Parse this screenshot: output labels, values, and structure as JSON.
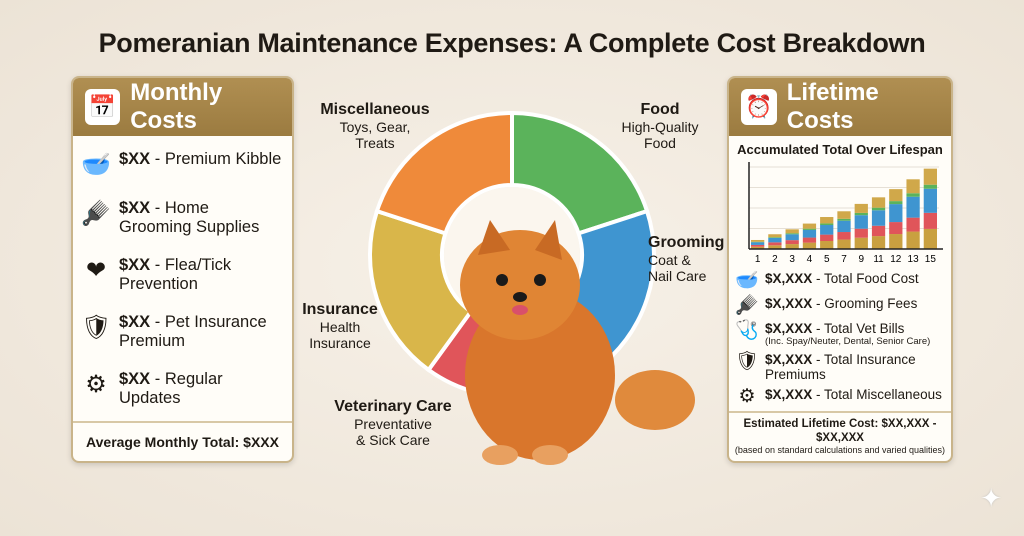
{
  "title": "Pomeranian Maintenance Expenses: A Complete Cost Breakdown",
  "monthly": {
    "heading": "Monthly Costs",
    "icon": "calendar-icon",
    "items": [
      {
        "amount": "$XX",
        "label": " - Premium Kibble",
        "icon": "food-bowl-icon"
      },
      {
        "amount": "$XX",
        "label": " - Home Grooming Supplies",
        "icon": "brush-icon"
      },
      {
        "amount": "$XX",
        "label": " - Flea/Tick Prevention",
        "icon": "heart-plus-icon"
      },
      {
        "amount": "$XX",
        "label": " - Pet Insurance Premium",
        "icon": "shield-icon"
      },
      {
        "amount": "$XX",
        "label": " - Regular Updates",
        "icon": "toys-gear-icon"
      }
    ],
    "total": "Average Monthly Total: $XXX"
  },
  "wheel": {
    "segments": [
      {
        "title": "Food",
        "desc": "High-Quality Food",
        "color": "#5bb35b"
      },
      {
        "title": "Grooming",
        "desc": "Coat & Nail Care",
        "color": "#3f95d0"
      },
      {
        "title": "Veterinary Care",
        "desc": "Preventative & Sick Care",
        "color": "#e0555a"
      },
      {
        "title": "Insurance",
        "desc": "Health Insurance",
        "color": "#d9b64a"
      },
      {
        "title": "Miscellaneous",
        "desc": "Toys, Gear, Treats",
        "color": "#ef8a3a"
      }
    ]
  },
  "lifetime": {
    "heading": "Lifetime Costs",
    "icon": "clock-money-icon",
    "items": [
      {
        "amount": "$X,XXX",
        "label": " - Total Food Cost",
        "icon": "food-bowl-icon"
      },
      {
        "amount": "$X,XXX",
        "label": " - Grooming Fees",
        "icon": "brush-icon"
      },
      {
        "amount": "$X,XXX",
        "label": " - Total Vet Bills",
        "sub": "(Inc. Spay/Neuter, Dental, Senior Care)",
        "icon": "stethoscope-icon"
      },
      {
        "amount": "$X,XXX",
        "label": " - Total Insurance Premiums",
        "icon": "shield-icon"
      },
      {
        "amount": "$X,XXX",
        "label": " - Total Miscellaneous",
        "icon": "toys-gear-icon"
      }
    ],
    "total": "Estimated Lifetime Cost: $XX,XXX - $XX,XXX",
    "total_note": "(based on standard calculations and varied qualities)"
  },
  "chart_data": {
    "type": "bar",
    "stacked": true,
    "title": "Accumulated Total Over Lifespan",
    "categories": [
      "1",
      "2",
      "3",
      "4",
      "5",
      "7",
      "9",
      "11",
      "12",
      "13",
      "15"
    ],
    "values": [
      11,
      18,
      24,
      31,
      39,
      46,
      55,
      63,
      73,
      85,
      98
    ],
    "ylim": [
      0,
      100
    ],
    "grid": true,
    "colors": [
      "#c9a040",
      "#e0555a",
      "#3f95d0",
      "#5bb35b",
      "#d0a84a"
    ]
  }
}
